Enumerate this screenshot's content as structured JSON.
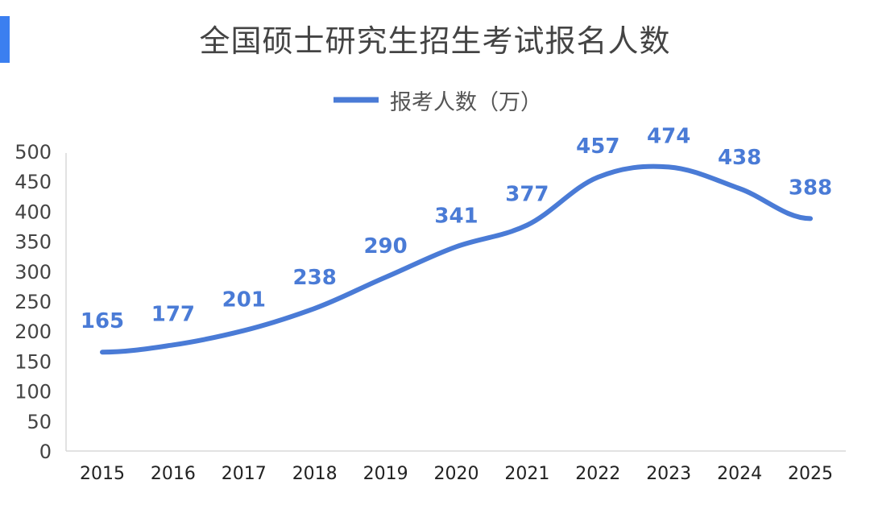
{
  "chart_data": {
    "type": "line",
    "title": "全国硕士研究生招生考试报名人数",
    "legend": {
      "label": "报考人数（万）",
      "position": "top"
    },
    "categories": [
      "2015",
      "2016",
      "2017",
      "2018",
      "2019",
      "2020",
      "2021",
      "2022",
      "2023",
      "2024",
      "2025"
    ],
    "series": [
      {
        "name": "报考人数（万）",
        "values": [
          165,
          177,
          201,
          238,
          290,
          341,
          377,
          457,
          474,
          438,
          388
        ]
      }
    ],
    "yticks": [
      "0",
      "50",
      "100",
      "150",
      "200",
      "250",
      "300",
      "350",
      "400",
      "450",
      "500"
    ],
    "ylim": [
      0,
      500
    ],
    "xlabel": "",
    "ylabel": "",
    "grid": false,
    "colors": {
      "line": "#4a7bd6",
      "label": "#4a7bd6",
      "accent": "#3b7ff0"
    }
  }
}
